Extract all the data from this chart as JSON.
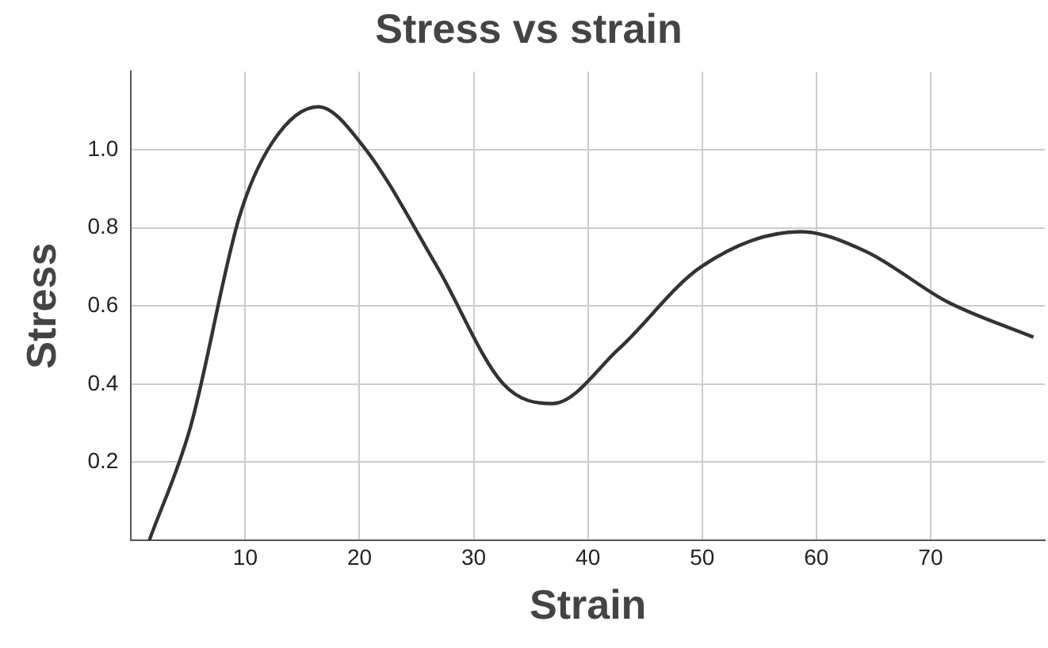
{
  "chart_data": {
    "type": "line",
    "title": "Stress vs strain",
    "xlabel": "Strain",
    "ylabel": "Stress",
    "x": [
      1.6,
      5.2,
      9.5,
      12.4,
      16.4,
      20.3,
      26.8,
      32.6,
      36.9,
      42.7,
      49.9,
      58.6,
      64.3,
      71.5,
      79
    ],
    "series": [
      {
        "color": "#333333",
        "values": [
          0,
          0.29,
          0.83,
          1.02,
          1.11,
          1.01,
          0.7,
          0.4,
          0.35,
          0.49,
          0.7,
          0.79,
          0.74,
          0.61,
          0.52
        ]
      }
    ],
    "xlim": [
      0,
      80
    ],
    "ylim": [
      0,
      1.2
    ],
    "xticks": [
      10,
      20,
      30,
      40,
      50,
      60,
      70
    ],
    "yticks": [
      0.2,
      0.4,
      0.6,
      0.8,
      {
        "value": 1,
        "label": "1.0"
      }
    ],
    "grid": true,
    "legend": false,
    "marker": "none",
    "line_style": "solid"
  }
}
